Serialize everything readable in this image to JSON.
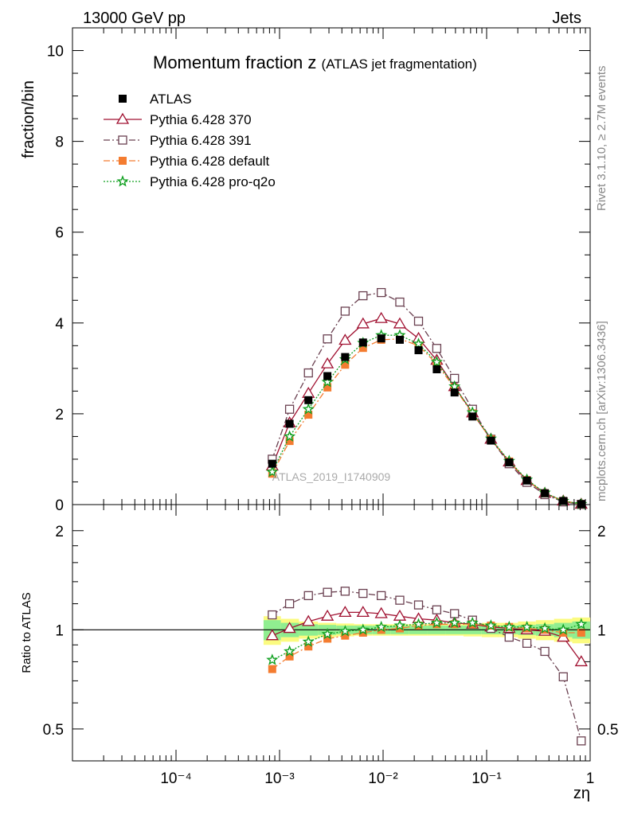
{
  "header": {
    "left": "13000 GeV pp",
    "right": "Jets"
  },
  "side_labels": {
    "rivet": "Rivet 3.1.10, ≥ 2.7M events",
    "mcplots": "mcplots.cern.ch [arXiv:1306.3436]"
  },
  "main_panel": {
    "title": "Momentum fraction z",
    "title_suffix": "(ATLAS jet fragmentation)",
    "ylabel": "fraction/bin",
    "watermark": "ATLAS_2019_I1740909",
    "y_ticks": [
      "0",
      "2",
      "4",
      "6",
      "8",
      "10"
    ]
  },
  "ratio_panel": {
    "ylabel": "Ratio to ATLAS",
    "y_ticks": [
      "0.5",
      "1",
      "2"
    ],
    "x_ticks": [
      "10⁻⁴",
      "10⁻³",
      "10⁻²",
      "10⁻¹",
      "1"
    ],
    "xlabel": "zη"
  },
  "legend": [
    {
      "label": "ATLAS",
      "color": "#000000",
      "marker": "square-filled",
      "line": "none"
    },
    {
      "label": "Pythia 6.428 370",
      "color": "#a01030",
      "marker": "triangle-open",
      "line": "solid"
    },
    {
      "label": "Pythia 6.428 391",
      "color": "#6a4050",
      "marker": "square-open",
      "line": "dashdot"
    },
    {
      "label": "Pythia 6.428 default",
      "color": "#f47c30",
      "marker": "square-filled",
      "line": "dashdot"
    },
    {
      "label": "Pythia 6.428 pro-q2o",
      "color": "#10a020",
      "marker": "star",
      "line": "dotted"
    }
  ],
  "chart_data": {
    "type": "scatter",
    "x_scale": "log",
    "xlim": [
      1e-05,
      1
    ],
    "ylim": [
      0,
      10.5
    ],
    "ratio_ylim": [
      0.4,
      2.4
    ],
    "x": [
      0.00085,
      0.00125,
      0.0019,
      0.0029,
      0.0043,
      0.0064,
      0.0096,
      0.0145,
      0.022,
      0.033,
      0.049,
      0.073,
      0.11,
      0.165,
      0.245,
      0.365,
      0.55,
      0.82
    ],
    "series": [
      {
        "name": "ATLAS",
        "values": [
          0.9,
          1.78,
          2.3,
          2.83,
          3.25,
          3.57,
          3.66,
          3.63,
          3.4,
          2.98,
          2.47,
          1.94,
          1.41,
          0.93,
          0.53,
          0.25,
          0.08,
          0.01
        ],
        "ratio": [
          1,
          1,
          1,
          1,
          1,
          1,
          1,
          1,
          1,
          1,
          1,
          1,
          1,
          1,
          1,
          1,
          1,
          1
        ]
      },
      {
        "name": "Pythia 6.428 370",
        "values": [
          0.85,
          1.8,
          2.45,
          3.1,
          3.62,
          3.98,
          4.1,
          3.98,
          3.66,
          3.18,
          2.6,
          2.02,
          1.44,
          0.94,
          0.53,
          0.25,
          0.08,
          0.01
        ],
        "ratio": [
          0.96,
          1.01,
          1.06,
          1.1,
          1.13,
          1.13,
          1.12,
          1.1,
          1.08,
          1.07,
          1.05,
          1.04,
          1.02,
          1.01,
          1.0,
          0.99,
          0.95,
          0.8
        ]
      },
      {
        "name": "Pythia 6.428 391",
        "values": [
          1.0,
          2.1,
          2.9,
          3.65,
          4.26,
          4.6,
          4.67,
          4.46,
          4.04,
          3.44,
          2.78,
          2.1,
          1.44,
          0.9,
          0.49,
          0.22,
          0.06,
          0.005
        ],
        "ratio": [
          1.11,
          1.2,
          1.27,
          1.3,
          1.31,
          1.29,
          1.27,
          1.23,
          1.19,
          1.15,
          1.12,
          1.07,
          1.01,
          0.95,
          0.91,
          0.86,
          0.72,
          0.46
        ]
      },
      {
        "name": "Pythia 6.428 default",
        "values": [
          0.68,
          1.4,
          1.98,
          2.58,
          3.08,
          3.45,
          3.63,
          3.65,
          3.5,
          3.1,
          2.57,
          2.01,
          1.44,
          0.95,
          0.54,
          0.25,
          0.08,
          0.01
        ],
        "ratio": [
          0.76,
          0.83,
          0.89,
          0.94,
          0.96,
          0.98,
          1.0,
          1.01,
          1.03,
          1.04,
          1.04,
          1.04,
          1.03,
          1.02,
          1.01,
          1.0,
          0.98,
          0.98
        ]
      },
      {
        "name": "Pythia 6.428 pro-q2o",
        "values": [
          0.72,
          1.5,
          2.1,
          2.7,
          3.2,
          3.56,
          3.73,
          3.73,
          3.54,
          3.14,
          2.6,
          2.03,
          1.45,
          0.96,
          0.55,
          0.26,
          0.08,
          0.01
        ],
        "ratio": [
          0.81,
          0.86,
          0.92,
          0.97,
          0.99,
          1.0,
          1.02,
          1.03,
          1.04,
          1.05,
          1.05,
          1.05,
          1.03,
          1.02,
          1.02,
          1.01,
          1.0,
          1.04
        ]
      }
    ],
    "uncertainty_band": {
      "inner": [
        0.07,
        0.05,
        0.04,
        0.035,
        0.03,
        0.03,
        0.03,
        0.03,
        0.03,
        0.03,
        0.03,
        0.03,
        0.03,
        0.03,
        0.035,
        0.04,
        0.05,
        0.06
      ],
      "outer": [
        0.1,
        0.08,
        0.06,
        0.05,
        0.045,
        0.04,
        0.04,
        0.04,
        0.04,
        0.04,
        0.04,
        0.045,
        0.05,
        0.05,
        0.06,
        0.07,
        0.08,
        0.09
      ]
    }
  }
}
